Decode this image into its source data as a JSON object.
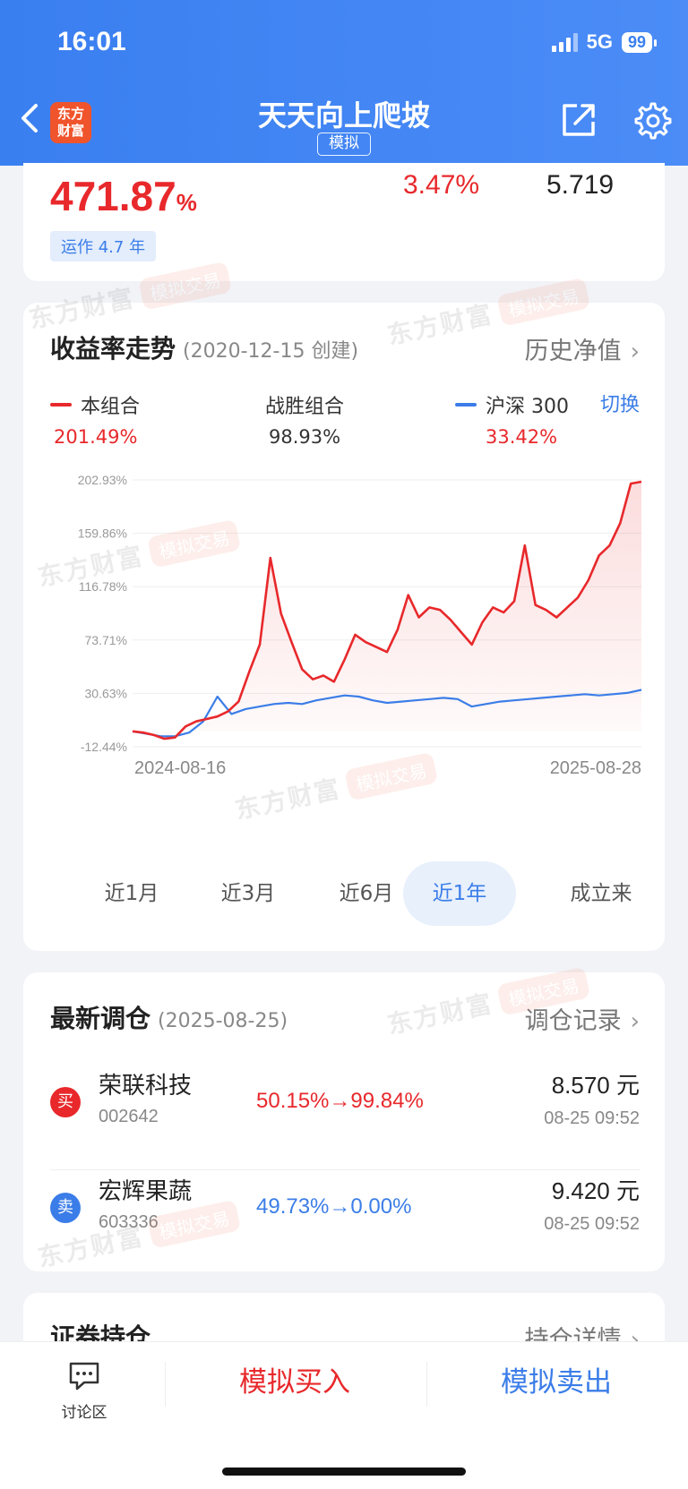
{
  "status_bar": {
    "time": "16:01",
    "network": "5G",
    "battery": "99"
  },
  "header": {
    "brand_line1": "东方",
    "brand_line2": "财富",
    "title": "天天向上爬坡",
    "mode_badge": "模拟"
  },
  "summary": {
    "total_return": "471.87",
    "total_return_unit": "%",
    "daily_return": "3.47%",
    "net_value": "5.719",
    "run_time": "运作 4.7 年"
  },
  "trend": {
    "title": "收益率走势",
    "created": "(2020-12-15 创建)",
    "history_link": "历史净值",
    "switch_label": "切换",
    "legend": [
      {
        "name": "本组合",
        "value": "201.49%",
        "color": "#e8282b",
        "value_color": "#e8282b"
      },
      {
        "name": "战胜组合",
        "value": "98.93%",
        "color": "",
        "value_color": "#333333"
      },
      {
        "name": "沪深 300",
        "value": "33.42%",
        "color": "#3b7de8",
        "value_color": "#e8282b"
      }
    ],
    "periods": [
      "近1月",
      "近3月",
      "近6月",
      "近1年",
      "成立来"
    ],
    "active_period": "近1年"
  },
  "chart_data": {
    "type": "line",
    "y_tick_labels": [
      "202.93%",
      "159.86%",
      "116.78%",
      "73.71%",
      "30.63%",
      "-12.44%"
    ],
    "ylim": [
      -12.44,
      202.93
    ],
    "x_tick_labels": [
      "2024-08-16",
      "2025-08-28"
    ],
    "grid": true,
    "series": [
      {
        "name": "本组合",
        "color": "#e8282b",
        "values": [
          0,
          -1,
          -3,
          -6,
          -5,
          4,
          8,
          10,
          12,
          16,
          24,
          48,
          70,
          140,
          95,
          72,
          50,
          42,
          45,
          40,
          58,
          78,
          72,
          68,
          64,
          82,
          110,
          92,
          100,
          98,
          90,
          80,
          70,
          88,
          100,
          96,
          105,
          150,
          102,
          98,
          92,
          100,
          108,
          122,
          142,
          150,
          168,
          200,
          201.49
        ]
      },
      {
        "name": "沪深 300",
        "color": "#3b7de8",
        "values": [
          0,
          -2,
          -4,
          -4,
          -1,
          8,
          28,
          14,
          18,
          20,
          22,
          23,
          22,
          25,
          27,
          29,
          28,
          25,
          23,
          24,
          25,
          26,
          27,
          26,
          20,
          22,
          24,
          25,
          26,
          27,
          28,
          29,
          30,
          29,
          30,
          31,
          33.42
        ]
      }
    ]
  },
  "rebalance": {
    "title": "最新调仓",
    "date": "(2025-08-25)",
    "link": "调仓记录",
    "trades": [
      {
        "action": "买",
        "action_color": "#e8282b",
        "name": "荣联科技",
        "code": "002642",
        "change": "50.15%→99.84%",
        "change_color": "#e8282b",
        "price": "8.570 元",
        "time": "08-25 09:52"
      },
      {
        "action": "卖",
        "action_color": "#3b7de8",
        "name": "宏辉果蔬",
        "code": "603336",
        "change": "49.73%→0.00%",
        "change_color": "#3b7de8",
        "price": "9.420 元",
        "time": "08-25 09:52"
      }
    ]
  },
  "holdings": {
    "title": "证券持仓",
    "link": "持仓详情"
  },
  "bottom_bar": {
    "discuss_label": "讨论区",
    "buy_label": "模拟买入",
    "sell_label": "模拟卖出"
  },
  "watermark": {
    "brand": "东方财富",
    "tag": "模拟交易"
  }
}
